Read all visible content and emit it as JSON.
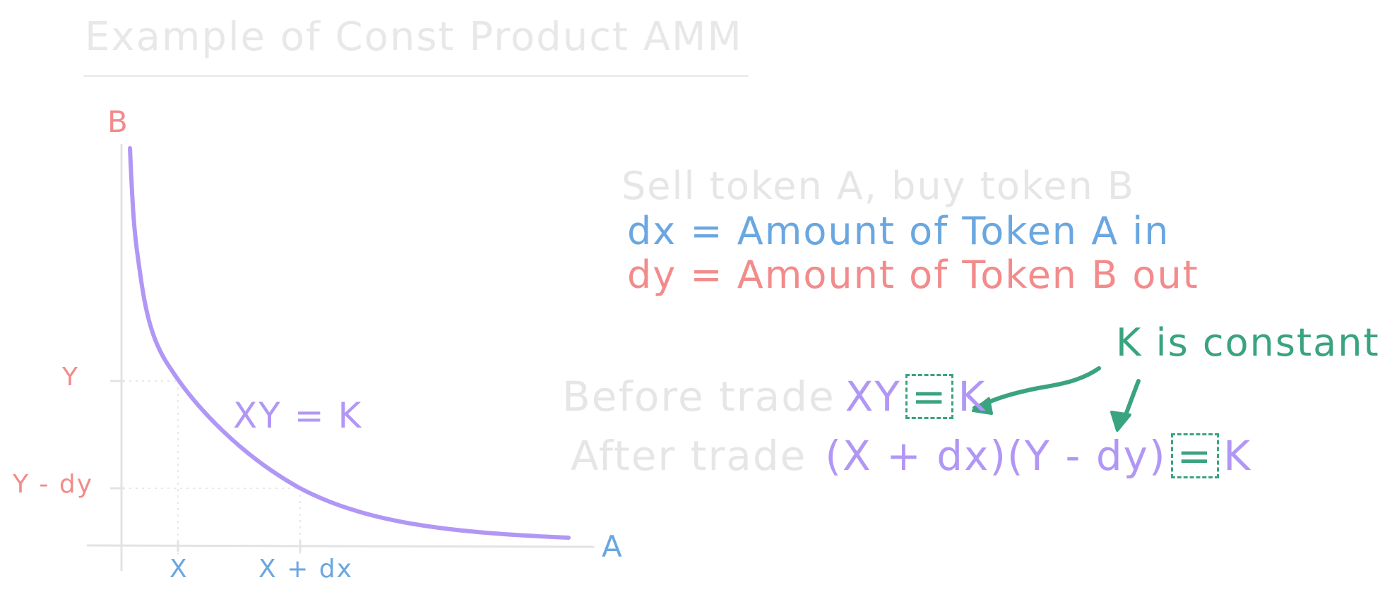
{
  "title": "Example of Const Product AMM",
  "axes": {
    "y_axis_label": "B",
    "x_axis_label": "A",
    "y_ticks": [
      "Y",
      "Y - dy"
    ],
    "x_ticks": [
      "X",
      "X + dx"
    ]
  },
  "curve_label": "XY = K",
  "description": {
    "heading": "Sell token A, buy token B",
    "dx_def": "dx = Amount of Token A in",
    "dy_def": "dy = Amount of Token B out"
  },
  "equations": {
    "note": "K is constant",
    "before_label": "Before trade",
    "before_lhs": "XY",
    "before_eq": "=",
    "before_rhs": "K",
    "after_label": "After trade",
    "after_lhs": "(X + dx)(Y - dy)",
    "after_eq": "=",
    "after_rhs": "K"
  },
  "colors": {
    "red": "#f28b8b",
    "blue": "#6aa7e0",
    "purple": "#b197f5",
    "green": "#3aa37f",
    "grey": "#e6e6e6"
  }
}
